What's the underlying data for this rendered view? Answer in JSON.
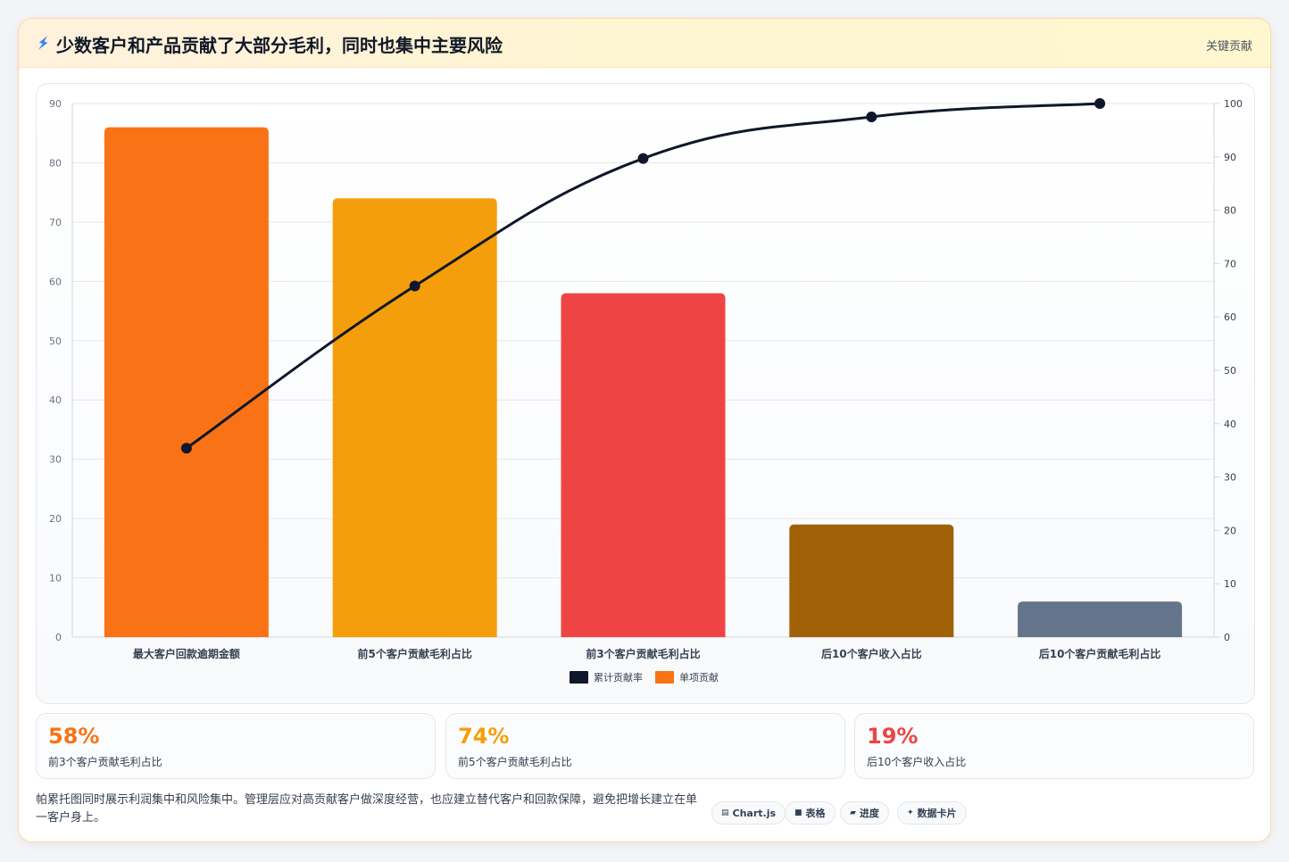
{
  "header": {
    "title": "少数客户和产品贡献了大部分毛利，同时也集中主要风险",
    "link_label": "关键贡献",
    "icon": "lightning-icon"
  },
  "chart_data": {
    "type": "bar",
    "categories": [
      "最大客户回款逾期金额",
      "前5个客户贡献毛利占比",
      "前3个客户贡献毛利占比",
      "后10个客户收入占比",
      "后10个客户贡献毛利占比"
    ],
    "series": [
      {
        "name": "单项贡献",
        "type": "bar",
        "axis": "left",
        "values": [
          86,
          74,
          58,
          19,
          6
        ],
        "colors": [
          "#f97316",
          "#f59e0b",
          "#ef4444",
          "#a16207",
          "#64748b"
        ]
      },
      {
        "name": "累计贡献率",
        "type": "line",
        "axis": "right",
        "values": [
          35.4,
          65.8,
          89.7,
          97.5,
          100
        ],
        "color": "#0f172a"
      }
    ],
    "ylim": [
      0,
      90
    ],
    "yticks": [
      0,
      10,
      20,
      30,
      40,
      50,
      60,
      70,
      80,
      90
    ],
    "y2lim": [
      0,
      100
    ],
    "y2ticks": [
      0,
      10,
      20,
      30,
      40,
      50,
      60,
      70,
      80,
      90,
      100
    ],
    "legend": [
      "累计贡献率",
      "单项贡献"
    ],
    "legend_colors": [
      "#0f172a",
      "#f97316"
    ],
    "legend_position": "bottom",
    "grid": true
  },
  "kpis": [
    {
      "value": "58%",
      "label": "前3个客户贡献毛利占比",
      "color": "#f97316"
    },
    {
      "value": "74%",
      "label": "前5个客户贡献毛利占比",
      "color": "#f59e0b"
    },
    {
      "value": "19%",
      "label": "后10个客户收入占比",
      "color": "#ef4444"
    }
  ],
  "footer": {
    "text": "帕累托图同时展示利润集中和风险集中。管理层应对高贡献客户做深度经营，也应建立替代客户和回款保障，避免把增长建立在单一客户身上。",
    "pills": [
      {
        "icon": "chart-icon",
        "label": "Chart.js"
      },
      {
        "icon": "table-icon",
        "label": "表格"
      },
      {
        "icon": "progress-icon",
        "label": "进度"
      },
      {
        "icon": "sparkle-icon",
        "label": "数据卡片"
      }
    ]
  }
}
